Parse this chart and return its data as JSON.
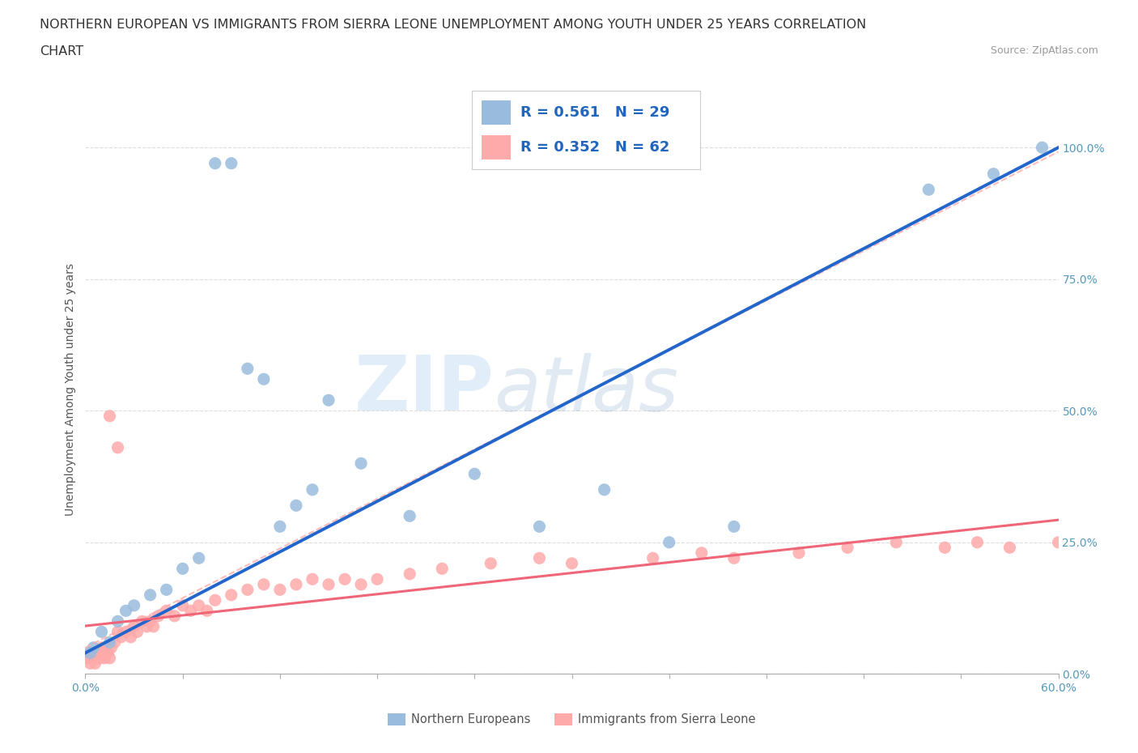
{
  "title_line1": "NORTHERN EUROPEAN VS IMMIGRANTS FROM SIERRA LEONE UNEMPLOYMENT AMONG YOUTH UNDER 25 YEARS CORRELATION",
  "title_line2": "CHART",
  "source_text": "Source: ZipAtlas.com",
  "ylabel": "Unemployment Among Youth under 25 years",
  "x_min": 0.0,
  "x_max": 0.6,
  "y_min": 0.0,
  "y_max": 1.08,
  "x_ticks": [
    0.0,
    0.06,
    0.12,
    0.18,
    0.24,
    0.3,
    0.36,
    0.42,
    0.48,
    0.54,
    0.6
  ],
  "x_tick_labels": [
    "0.0%",
    "",
    "",
    "",
    "",
    "",
    "",
    "",
    "",
    "",
    "60.0%"
  ],
  "y_ticks": [
    0.0,
    0.25,
    0.5,
    0.75,
    1.0
  ],
  "y_tick_labels": [
    "0.0%",
    "25.0%",
    "50.0%",
    "75.0%",
    "100.0%"
  ],
  "watermark_zip": "ZIP",
  "watermark_atlas": "atlas",
  "blue_color": "#99BBDD",
  "pink_color": "#FFAAAA",
  "blue_line_color": "#2266CC",
  "pink_line_color": "#EE6677",
  "pink_dash_color": "#FFAAAA",
  "grid_color": "#DDDDDD",
  "legend_R_blue": "R = 0.561",
  "legend_N_blue": "N = 29",
  "legend_R_pink": "R = 0.352",
  "legend_N_pink": "N = 62",
  "title_fontsize": 11.5,
  "axis_label_fontsize": 10,
  "tick_fontsize": 10,
  "legend_fontsize": 13,
  "blue_scatter_x": [
    0.003,
    0.005,
    0.01,
    0.015,
    0.02,
    0.025,
    0.03,
    0.04,
    0.05,
    0.06,
    0.07,
    0.08,
    0.09,
    0.1,
    0.11,
    0.12,
    0.13,
    0.14,
    0.15,
    0.17,
    0.2,
    0.24,
    0.28,
    0.32,
    0.36,
    0.4,
    0.52,
    0.56,
    0.59
  ],
  "blue_scatter_y": [
    0.04,
    0.05,
    0.08,
    0.06,
    0.1,
    0.12,
    0.13,
    0.15,
    0.16,
    0.2,
    0.22,
    0.97,
    0.97,
    0.58,
    0.56,
    0.28,
    0.32,
    0.35,
    0.52,
    0.4,
    0.3,
    0.38,
    0.28,
    0.35,
    0.25,
    0.28,
    0.92,
    0.95,
    1.0
  ],
  "pink_scatter_x": [
    0.001,
    0.002,
    0.003,
    0.004,
    0.005,
    0.006,
    0.007,
    0.008,
    0.009,
    0.01,
    0.011,
    0.012,
    0.013,
    0.014,
    0.015,
    0.016,
    0.018,
    0.02,
    0.022,
    0.025,
    0.028,
    0.03,
    0.032,
    0.035,
    0.038,
    0.04,
    0.042,
    0.045,
    0.05,
    0.055,
    0.06,
    0.065,
    0.07,
    0.075,
    0.08,
    0.09,
    0.1,
    0.11,
    0.12,
    0.13,
    0.14,
    0.15,
    0.16,
    0.17,
    0.18,
    0.2,
    0.22,
    0.25,
    0.28,
    0.3,
    0.35,
    0.38,
    0.4,
    0.44,
    0.47,
    0.5,
    0.53,
    0.55,
    0.57,
    0.6,
    0.015,
    0.02
  ],
  "pink_scatter_y": [
    0.03,
    0.04,
    0.02,
    0.03,
    0.04,
    0.02,
    0.03,
    0.04,
    0.03,
    0.05,
    0.04,
    0.03,
    0.05,
    0.04,
    0.03,
    0.05,
    0.06,
    0.08,
    0.07,
    0.08,
    0.07,
    0.09,
    0.08,
    0.1,
    0.09,
    0.1,
    0.09,
    0.11,
    0.12,
    0.11,
    0.13,
    0.12,
    0.13,
    0.12,
    0.14,
    0.15,
    0.16,
    0.17,
    0.16,
    0.17,
    0.18,
    0.17,
    0.18,
    0.17,
    0.18,
    0.19,
    0.2,
    0.21,
    0.22,
    0.21,
    0.22,
    0.23,
    0.22,
    0.23,
    0.24,
    0.25,
    0.24,
    0.25,
    0.24,
    0.25,
    0.49,
    0.43
  ]
}
